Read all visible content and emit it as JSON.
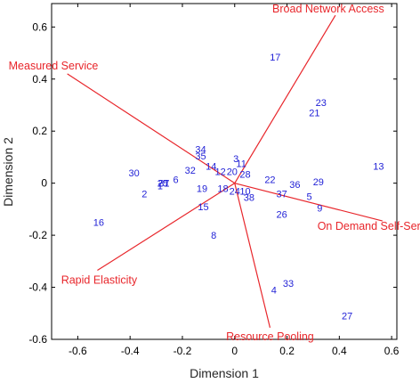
{
  "chart_data": {
    "type": "scatter",
    "subtype": "biplot",
    "xlabel": "Dimension 1",
    "ylabel": "Dimension 2",
    "xlim": [
      -0.7,
      0.62
    ],
    "ylim": [
      -0.6,
      0.69
    ],
    "xticks": [
      -0.6,
      -0.4,
      -0.2,
      0,
      0.2,
      0.4,
      0.6
    ],
    "yticks": [
      -0.6,
      -0.4,
      -0.2,
      0,
      0.2,
      0.4,
      0.6
    ],
    "tick_labels_x": [
      "-0.6",
      "-0.4",
      "-0.2",
      "0",
      "0.2",
      "0.4",
      "0.6"
    ],
    "tick_labels_y": [
      "-0.6",
      "-0.4",
      "-0.2",
      "0",
      "0.2",
      "0.4",
      "0.6"
    ],
    "grid": false,
    "colors": {
      "points": "#1f1fd6",
      "vectors": "#e8262b",
      "axes": "#000000"
    },
    "points": [
      {
        "label": "1",
        "x": -0.285,
        "y": -0.01
      },
      {
        "label": "2",
        "x": -0.345,
        "y": -0.04
      },
      {
        "label": "3",
        "x": 0.005,
        "y": 0.095
      },
      {
        "label": "4",
        "x": 0.15,
        "y": -0.41
      },
      {
        "label": "5",
        "x": 0.285,
        "y": -0.05
      },
      {
        "label": "6",
        "x": -0.225,
        "y": 0.015
      },
      {
        "label": "7",
        "x": -0.26,
        "y": -0.0
      },
      {
        "label": "8",
        "x": -0.08,
        "y": -0.2
      },
      {
        "label": "9",
        "x": 0.325,
        "y": -0.095
      },
      {
        "label": "10",
        "x": 0.04,
        "y": -0.03
      },
      {
        "label": "11",
        "x": 0.025,
        "y": 0.075
      },
      {
        "label": "12",
        "x": -0.055,
        "y": 0.045
      },
      {
        "label": "13",
        "x": 0.55,
        "y": 0.065
      },
      {
        "label": "14",
        "x": -0.09,
        "y": 0.065
      },
      {
        "label": "15",
        "x": -0.12,
        "y": -0.09
      },
      {
        "label": "16",
        "x": -0.52,
        "y": -0.15
      },
      {
        "label": "17",
        "x": 0.155,
        "y": 0.485
      },
      {
        "label": "18",
        "x": -0.045,
        "y": -0.02
      },
      {
        "label": "19",
        "x": -0.125,
        "y": -0.02
      },
      {
        "label": "20",
        "x": -0.01,
        "y": 0.045
      },
      {
        "label": "21",
        "x": 0.305,
        "y": 0.27
      },
      {
        "label": "22",
        "x": 0.135,
        "y": 0.015
      },
      {
        "label": "23",
        "x": 0.33,
        "y": 0.31
      },
      {
        "label": "24",
        "x": 0.0,
        "y": -0.03
      },
      {
        "label": "25",
        "x": -0.275,
        "y": 0.0
      },
      {
        "label": "26",
        "x": 0.18,
        "y": -0.12
      },
      {
        "label": "27",
        "x": 0.43,
        "y": -0.51
      },
      {
        "label": "28",
        "x": 0.04,
        "y": 0.035
      },
      {
        "label": "29",
        "x": 0.32,
        "y": 0.005
      },
      {
        "label": "30",
        "x": -0.385,
        "y": 0.04
      },
      {
        "label": "31",
        "x": -0.27,
        "y": 0.0
      },
      {
        "label": "32",
        "x": -0.17,
        "y": 0.05
      },
      {
        "label": "33",
        "x": 0.205,
        "y": -0.385
      },
      {
        "label": "34",
        "x": -0.13,
        "y": 0.13
      },
      {
        "label": "35",
        "x": -0.13,
        "y": 0.105
      },
      {
        "label": "36",
        "x": 0.23,
        "y": -0.005
      },
      {
        "label": "37",
        "x": 0.18,
        "y": -0.04
      },
      {
        "label": "38",
        "x": 0.055,
        "y": -0.055
      }
    ],
    "vectors": [
      {
        "name": "Broad Network Access",
        "x": 0.385,
        "y": 0.645
      },
      {
        "name": "Measured Service",
        "x": -0.64,
        "y": 0.42
      },
      {
        "name": "On Demand Self-Service",
        "x": 0.565,
        "y": -0.145
      },
      {
        "name": "Rapid Elasticity",
        "x": -0.525,
        "y": -0.335
      },
      {
        "name": "Resource Pooling",
        "x": 0.135,
        "y": -0.555
      }
    ]
  }
}
